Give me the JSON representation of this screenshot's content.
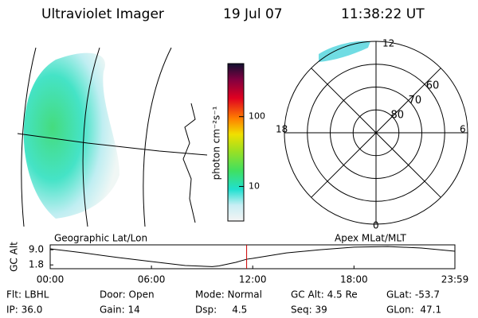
{
  "header": {
    "title": "Ultraviolet Imager",
    "date": "19 Jul 07",
    "time": "11:38:22 UT"
  },
  "colorbar": {
    "label": "photon cm⁻²s⁻¹",
    "scale": "log",
    "lim": [
      3.2,
      575
    ],
    "ticks": [
      10,
      100
    ]
  },
  "polar": {
    "mlt_labels": [
      "12",
      "18",
      "6",
      "0"
    ],
    "lat_lim": [
      90,
      50
    ],
    "lat_ticks": [
      80,
      70,
      60
    ]
  },
  "panels": {
    "left": "Geographic Lat/Lon",
    "right": "Apex MLat/MLT"
  },
  "chart_data": {
    "type": "line",
    "ylabel": "GC Alt",
    "color": "#000000",
    "x": [
      0,
      2,
      4,
      6,
      8,
      9.6,
      10,
      11,
      11.64,
      12,
      14,
      16,
      18,
      20,
      22,
      23.98
    ],
    "values": [
      9.4,
      7.5,
      5.3,
      3.4,
      1.5,
      1.0,
      1.3,
      3.0,
      4.5,
      4.9,
      7.5,
      9.0,
      10.2,
      10.5,
      9.8,
      8.3
    ],
    "xlim": [
      0,
      23.98
    ],
    "ylim": [
      0,
      11.3
    ],
    "xticks": [
      {
        "value": 0,
        "label": "00:00"
      },
      {
        "value": 6,
        "label": "06:00"
      },
      {
        "value": 12,
        "label": "12:00"
      },
      {
        "value": 18,
        "label": "18:00"
      },
      {
        "value": 23.98,
        "label": "23:59"
      }
    ],
    "yticks": [
      {
        "value": 1.8,
        "label": "1.8"
      },
      {
        "value": 9.0,
        "label": "9.0"
      }
    ],
    "marker_x": 11.64,
    "marker_color": "#cc0000"
  },
  "footer": [
    [
      "Flt: LBHL",
      "Door: Open",
      "Mode: Normal",
      "GC Alt: 4.5 Re",
      "GLat: -53.7"
    ],
    [
      "IP: 36.0",
      "Gain: 14",
      "Dsp:     4.5",
      "Seq: 39",
      "GLon:  47.1"
    ]
  ]
}
